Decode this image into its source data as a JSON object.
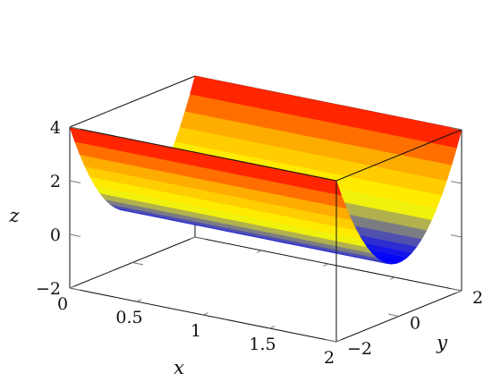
{
  "chart_data": {
    "type": "surface",
    "function": "z = y^2",
    "colormap": [
      "#0000ff",
      "#ffff00",
      "#ffa500",
      "#ff0000"
    ],
    "x_range": [
      0,
      2
    ],
    "y_range": [
      -2,
      2
    ],
    "z_range": [
      -2,
      4
    ],
    "x_samples": 25,
    "y_samples": 25,
    "xlabel": "x",
    "ylabel": "y",
    "zlabel": "z",
    "x_ticks": [
      {
        "value": 0,
        "label": "0"
      },
      {
        "value": 0.5,
        "label": "0.5"
      },
      {
        "value": 1,
        "label": "1"
      },
      {
        "value": 1.5,
        "label": "1.5"
      },
      {
        "value": 2,
        "label": "2"
      }
    ],
    "y_ticks": [
      {
        "value": -2,
        "label": "−2"
      },
      {
        "value": 0,
        "label": "0"
      },
      {
        "value": 2,
        "label": "2"
      }
    ],
    "z_ticks": [
      {
        "value": -2,
        "label": "−2"
      },
      {
        "value": 0,
        "label": "0"
      },
      {
        "value": 2,
        "label": "2"
      },
      {
        "value": 4,
        "label": "4"
      }
    ],
    "grid": false,
    "box": true
  }
}
